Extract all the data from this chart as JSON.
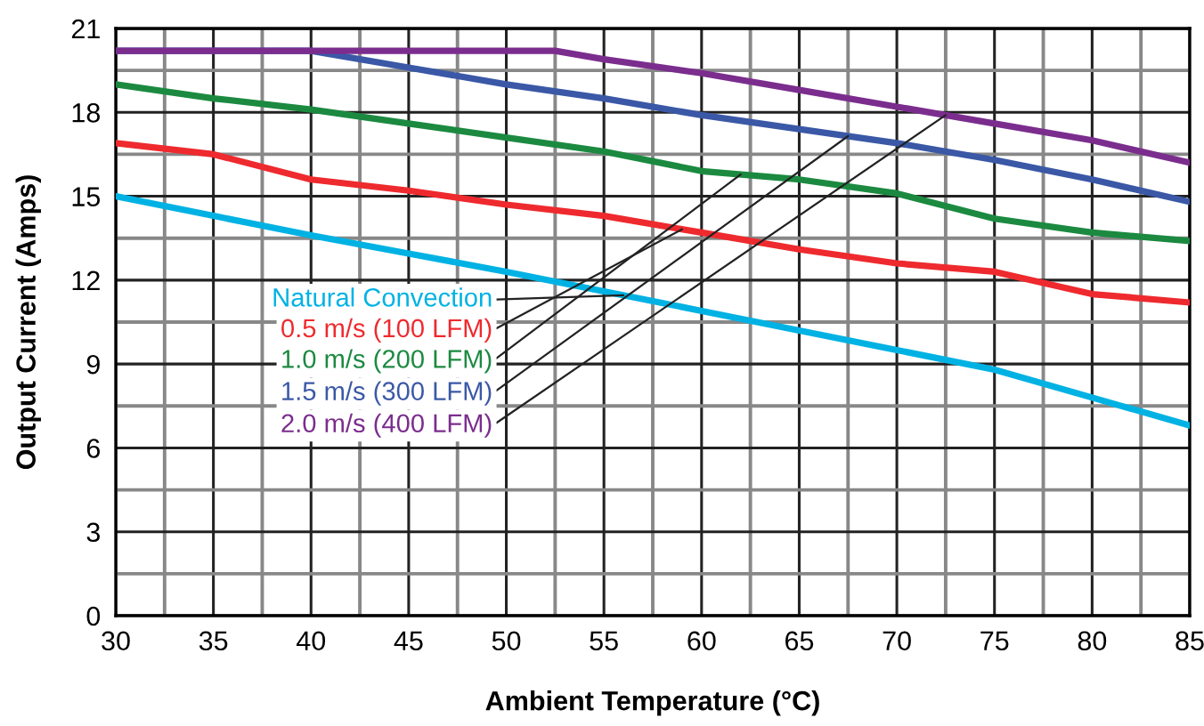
{
  "chart_data": {
    "type": "line",
    "xlabel": "Ambient Temperature (°C)",
    "ylabel": "Output Current (Amps)",
    "xlim": [
      30,
      85
    ],
    "xticks": [
      30,
      35,
      40,
      45,
      50,
      55,
      60,
      65,
      70,
      75,
      80,
      85
    ],
    "ylim": [
      0,
      21
    ],
    "yticks": [
      0,
      3,
      6,
      9,
      12,
      15,
      18,
      21
    ],
    "grid": true,
    "legend": false,
    "marker": "none",
    "line_style": "solid",
    "series": [
      {
        "name": "Natural Convection",
        "color": "#00b2e3",
        "x": [
          30,
          35,
          40,
          45,
          50,
          55,
          60,
          65,
          70,
          75,
          80,
          85
        ],
        "values": [
          15.0,
          14.3,
          13.6,
          12.95,
          12.3,
          11.6,
          10.9,
          10.2,
          9.5,
          8.8,
          7.8,
          6.8
        ]
      },
      {
        "name": "0.5 m/s (100 LFM)",
        "color": "#ee2a2e",
        "x": [
          30,
          35,
          40,
          45,
          50,
          55,
          60,
          65,
          70,
          75,
          80,
          85
        ],
        "values": [
          16.9,
          16.5,
          15.6,
          15.2,
          14.7,
          14.3,
          13.7,
          13.1,
          12.6,
          12.3,
          11.5,
          11.2
        ]
      },
      {
        "name": "1.0 m/s (200 LFM)",
        "color": "#1b8a40",
        "x": [
          30,
          35,
          40,
          45,
          50,
          55,
          60,
          65,
          70,
          75,
          80,
          85
        ],
        "values": [
          19.0,
          18.5,
          18.1,
          17.6,
          17.1,
          16.6,
          15.9,
          15.6,
          15.1,
          14.2,
          13.7,
          13.4
        ]
      },
      {
        "name": "1.5 m/s (300 LFM)",
        "color": "#3a58a6",
        "x": [
          30,
          40,
          45,
          50,
          55,
          60,
          65,
          70,
          75,
          80,
          85
        ],
        "values": [
          20.2,
          20.2,
          19.6,
          19.0,
          18.5,
          17.9,
          17.4,
          16.9,
          16.3,
          15.6,
          14.8
        ]
      },
      {
        "name": "2.0 m/s (400 LFM)",
        "color": "#7b2d8e",
        "x": [
          30,
          52.5,
          55,
          60,
          65,
          70,
          75,
          80,
          85
        ],
        "values": [
          20.2,
          20.2,
          19.9,
          19.4,
          18.8,
          18.2,
          17.6,
          17.0,
          16.2
        ]
      }
    ]
  }
}
